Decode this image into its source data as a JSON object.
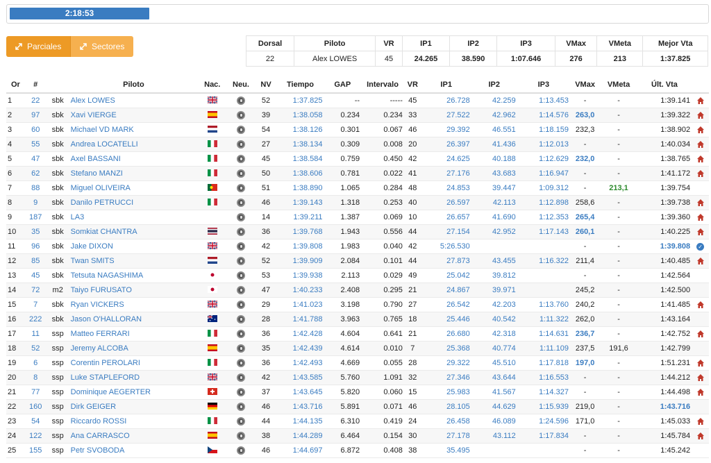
{
  "timer": "2:18:53",
  "buttons": {
    "parciales": "Parciales",
    "sectores": "Sectores"
  },
  "summary": {
    "headers": [
      "Dorsal",
      "Piloto",
      "VR",
      "IP1",
      "IP2",
      "IP3",
      "VMax",
      "VMeta",
      "Mejor Vta"
    ],
    "values": [
      "22",
      "Alex LOWES",
      "45",
      "24.265",
      "38.590",
      "1:07.646",
      "276",
      "213",
      "1:37.825"
    ]
  },
  "table": {
    "headers": [
      "Or",
      "#",
      "",
      "Piloto",
      "Nac.",
      "Neu.",
      "NV",
      "Tiempo",
      "GAP",
      "Intervalo",
      "VR",
      "IP1",
      "IP2",
      "IP3",
      "VMax",
      "VMeta",
      "Últ. Vta",
      ""
    ],
    "rows": [
      [
        "1",
        "22",
        "sbk",
        "Alex LOWES",
        "GB",
        "52",
        "1:37.825",
        "--",
        "-----",
        "45",
        "26.728",
        "42.259",
        "1:13.453",
        "-",
        "-",
        "1:39.141",
        "home"
      ],
      [
        "2",
        "97",
        "sbk",
        "Xavi VIERGE",
        "ES",
        "39",
        "1:38.058",
        "0.234",
        "0.234",
        "33",
        "27.522",
        "42.962",
        "1:14.576",
        "263,0",
        "-",
        "1:39.322",
        "home"
      ],
      [
        "3",
        "60",
        "sbk",
        "Michael VD MARK",
        "NL",
        "54",
        "1:38.126",
        "0.301",
        "0.067",
        "46",
        "29.392",
        "46.551",
        "1:18.159",
        "232,3",
        "-",
        "1:38.902",
        "home"
      ],
      [
        "4",
        "55",
        "sbk",
        "Andrea LOCATELLI",
        "IT",
        "27",
        "1:38.134",
        "0.309",
        "0.008",
        "20",
        "26.397",
        "41.436",
        "1:12.013",
        "-",
        "-",
        "1:40.034",
        "home"
      ],
      [
        "5",
        "47",
        "sbk",
        "Axel BASSANI",
        "IT",
        "45",
        "1:38.584",
        "0.759",
        "0.450",
        "42",
        "24.625",
        "40.188",
        "1:12.629",
        "232,0",
        "-",
        "1:38.765",
        "home"
      ],
      [
        "6",
        "62",
        "sbk",
        "Stefano MANZI",
        "IT",
        "50",
        "1:38.606",
        "0.781",
        "0.022",
        "41",
        "27.176",
        "43.683",
        "1:16.947",
        "-",
        "-",
        "1:41.172",
        "home"
      ],
      [
        "7",
        "88",
        "sbk",
        "Miguel OLIVEIRA",
        "PT",
        "51",
        "1:38.890",
        "1.065",
        "0.284",
        "48",
        "24.853",
        "39.447",
        "1:09.312",
        "-",
        "213,1",
        "1:39.754",
        ""
      ],
      [
        "8",
        "9",
        "sbk",
        "Danilo PETRUCCI",
        "IT",
        "46",
        "1:39.143",
        "1.318",
        "0.253",
        "40",
        "26.597",
        "42.113",
        "1:12.898",
        "258,6",
        "-",
        "1:39.738",
        "home"
      ],
      [
        "9",
        "187",
        "sbk",
        "LA3",
        "",
        "14",
        "1:39.211",
        "1.387",
        "0.069",
        "10",
        "26.657",
        "41.690",
        "1:12.353",
        "265,4",
        "-",
        "1:39.360",
        "home"
      ],
      [
        "10",
        "35",
        "sbk",
        "Somkiat CHANTRA",
        "TH",
        "36",
        "1:39.768",
        "1.943",
        "0.556",
        "44",
        "27.154",
        "42.952",
        "1:17.143",
        "260,1",
        "-",
        "1:40.225",
        "home"
      ],
      [
        "11",
        "96",
        "sbk",
        "Jake DIXON",
        "GB",
        "42",
        "1:39.808",
        "1.983",
        "0.040",
        "42",
        "5:26.530",
        "",
        "",
        "-",
        "-",
        "1:39.808",
        "check"
      ],
      [
        "12",
        "85",
        "sbk",
        "Twan SMITS",
        "NL",
        "52",
        "1:39.909",
        "2.084",
        "0.101",
        "44",
        "27.873",
        "43.455",
        "1:16.322",
        "211,4",
        "-",
        "1:40.485",
        "home"
      ],
      [
        "13",
        "45",
        "sbk",
        "Tetsuta NAGASHIMA",
        "JP",
        "53",
        "1:39.938",
        "2.113",
        "0.029",
        "49",
        "25.042",
        "39.812",
        "",
        "-",
        "-",
        "1:42.564",
        ""
      ],
      [
        "14",
        "72",
        "m2",
        "Taiyo FURUSATO",
        "JP",
        "47",
        "1:40.233",
        "2.408",
        "0.295",
        "21",
        "24.867",
        "39.971",
        "",
        "245,2",
        "-",
        "1:42.500",
        ""
      ],
      [
        "15",
        "7",
        "sbk",
        "Ryan VICKERS",
        "GB",
        "29",
        "1:41.023",
        "3.198",
        "0.790",
        "27",
        "26.542",
        "42.203",
        "1:13.760",
        "240,2",
        "-",
        "1:41.485",
        "home"
      ],
      [
        "16",
        "222",
        "sbk",
        "Jason O'HALLORAN",
        "AU",
        "28",
        "1:41.788",
        "3.963",
        "0.765",
        "18",
        "25.446",
        "40.542",
        "1:11.322",
        "262,0",
        "-",
        "1:43.164",
        ""
      ],
      [
        "17",
        "11",
        "ssp",
        "Matteo FERRARI",
        "IT",
        "36",
        "1:42.428",
        "4.604",
        "0.641",
        "21",
        "26.680",
        "42.318",
        "1:14.631",
        "236,7",
        "-",
        "1:42.752",
        "home"
      ],
      [
        "18",
        "52",
        "ssp",
        "Jeremy ALCOBA",
        "ES",
        "35",
        "1:42.439",
        "4.614",
        "0.010",
        "7",
        "25.368",
        "40.774",
        "1:11.109",
        "237,5",
        "191,6",
        "1:42.799",
        ""
      ],
      [
        "19",
        "6",
        "ssp",
        "Corentin PEROLARI",
        "IT",
        "36",
        "1:42.493",
        "4.669",
        "0.055",
        "28",
        "29.322",
        "45.510",
        "1:17.818",
        "197,0",
        "-",
        "1:51.231",
        "home"
      ],
      [
        "20",
        "8",
        "ssp",
        "Luke STAPLEFORD",
        "GB",
        "42",
        "1:43.585",
        "5.760",
        "1.091",
        "32",
        "27.346",
        "43.644",
        "1:16.553",
        "-",
        "-",
        "1:44.212",
        "home"
      ],
      [
        "21",
        "77",
        "ssp",
        "Dominique AEGERTER",
        "CH",
        "37",
        "1:43.645",
        "5.820",
        "0.060",
        "15",
        "25.983",
        "41.567",
        "1:14.327",
        "-",
        "-",
        "1:44.498",
        "home"
      ],
      [
        "22",
        "160",
        "ssp",
        "Dirk GEIGER",
        "DE",
        "46",
        "1:43.716",
        "5.891",
        "0.071",
        "46",
        "28.105",
        "44.629",
        "1:15.939",
        "219,0",
        "-",
        "1:43.716",
        ""
      ],
      [
        "23",
        "54",
        "ssp",
        "Riccardo ROSSI",
        "IT",
        "44",
        "1:44.135",
        "6.310",
        "0.419",
        "24",
        "26.458",
        "46.089",
        "1:24.596",
        "171,0",
        "-",
        "1:45.033",
        "home"
      ],
      [
        "24",
        "122",
        "ssp",
        "Ana CARRASCO",
        "ES",
        "38",
        "1:44.289",
        "6.464",
        "0.154",
        "30",
        "27.178",
        "43.112",
        "1:17.834",
        "-",
        "-",
        "1:45.784",
        "home"
      ],
      [
        "25",
        "155",
        "ssp",
        "Petr SVOBODA",
        "CZ",
        "46",
        "1:44.697",
        "6.872",
        "0.408",
        "38",
        "35.495",
        "",
        "",
        "-",
        "-",
        "1:45.242",
        ""
      ]
    ],
    "bold_vmax": [
      "263,0",
      "265,4",
      "260,1",
      "236,7",
      "197,0",
      "232,0"
    ],
    "bold_last": [
      "1:39.808",
      "1:43.716"
    ],
    "green_vmeta": [
      "213,1"
    ]
  }
}
